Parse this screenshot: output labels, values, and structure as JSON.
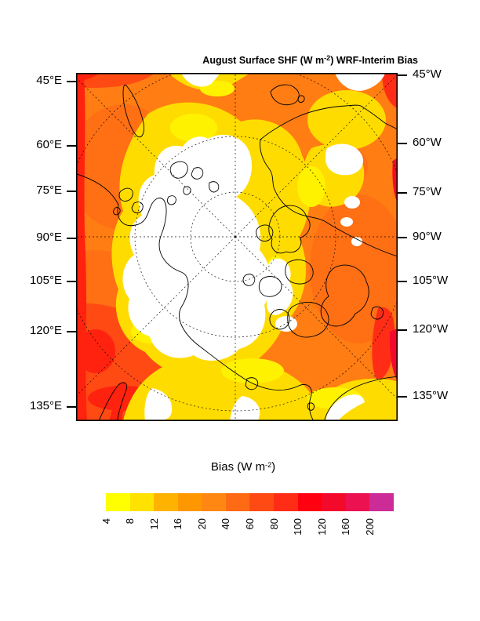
{
  "title": {
    "text_before_sup": "August Surface SHF (W m",
    "sup": "-2",
    "text_after_sup": ") WRF-Interim Bias"
  },
  "map": {
    "left_axis_labels": [
      "45°E",
      "60°E",
      "75°E",
      "90°E",
      "105°E",
      "120°E",
      "135°E"
    ],
    "right_axis_labels": [
      "45°W",
      "60°W",
      "75°W",
      "90°W",
      "105°W",
      "120°W",
      "135°W"
    ]
  },
  "colorbar": {
    "title": {
      "text_before_sup": "Bias (W m",
      "sup": "-2",
      "text_after_sup": ")"
    },
    "tick_labels": [
      "4",
      "8",
      "12",
      "16",
      "20",
      "40",
      "60",
      "80",
      "100",
      "120",
      "160",
      "200"
    ],
    "colors": [
      "#FFFF00",
      "#FFE200",
      "#FFB300",
      "#FF9800",
      "#FF8712",
      "#FF6B14",
      "#FF4A13",
      "#FF2D16",
      "#FF0011",
      "#F30A2B",
      "#EC1252",
      "#CB2C98"
    ]
  },
  "chart_data": {
    "type": "heatmap",
    "subtype": "filled-contour-polar-stereographic-map",
    "region": "Arctic",
    "title": "August Surface SHF (W m-2) WRF-Interim Bias",
    "colorbar_title": "Bias (W m-2)",
    "units": "W m-2",
    "levels": [
      4,
      8,
      12,
      16,
      20,
      40,
      60,
      80,
      100,
      120,
      160,
      200
    ],
    "palette": [
      "#FFFF00",
      "#FFE200",
      "#FFB300",
      "#FF9800",
      "#FF8712",
      "#FF6B14",
      "#FF4A13",
      "#FF2D16",
      "#FF0011",
      "#F30A2B",
      "#EC1252",
      "#CB2C98"
    ],
    "below_min_color": "#FFFFFF",
    "left_meridian_labels": [
      "45°E",
      "60°E",
      "75°E",
      "90°E",
      "105°E",
      "120°E",
      "135°E"
    ],
    "right_meridian_labels": [
      "45°W",
      "60°W",
      "75°W",
      "90°W",
      "105°W",
      "120°W",
      "135°W"
    ],
    "legend_position": "bottom",
    "graticule": "dashed meridians every 45 degrees and dashed latitude circles around the pole",
    "notes": "White areas over the central Arctic sea ice show bias below 4 W m-2; most ocean and land areas show positive bias of 20-120 W m-2 (orange to red); small magenta areas exceed 200 W m-2. Coastlines drawn in black."
  }
}
